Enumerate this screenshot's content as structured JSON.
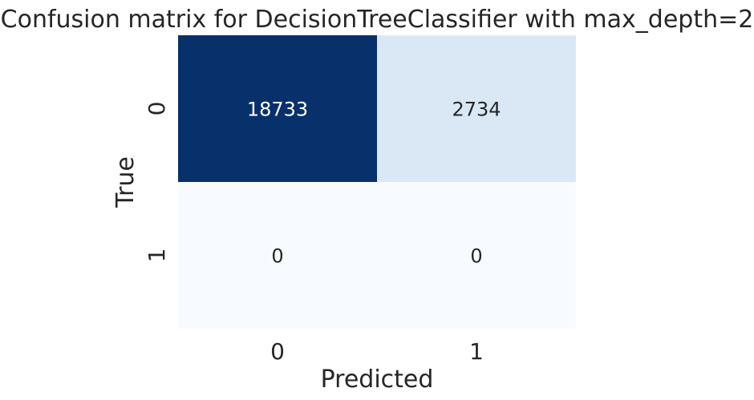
{
  "chart_data": {
    "type": "heatmap",
    "title": "Confusion matrix for DecisionTreeClassifier with max_depth=2",
    "xlabel": "Predicted",
    "ylabel": "True",
    "x_categories": [
      "0",
      "1"
    ],
    "y_categories": [
      "0",
      "1"
    ],
    "values": [
      [
        18733,
        2734
      ],
      [
        0,
        0
      ]
    ],
    "colormap": "Blues",
    "colors": {
      "low": "#f7fbff",
      "light": "#dae8f6",
      "high": "#08306b",
      "text_dark": "#262626",
      "text_light": "#ffffff"
    },
    "colorbar": false,
    "grid": false
  }
}
